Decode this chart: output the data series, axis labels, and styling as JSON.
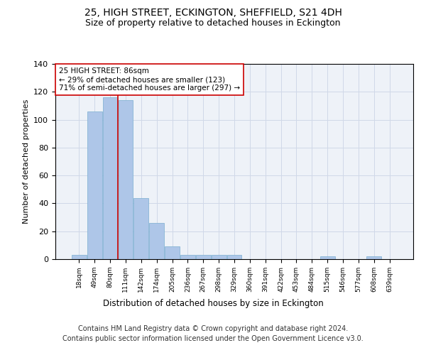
{
  "title": "25, HIGH STREET, ECKINGTON, SHEFFIELD, S21 4DH",
  "subtitle": "Size of property relative to detached houses in Eckington",
  "xlabel": "Distribution of detached houses by size in Eckington",
  "ylabel": "Number of detached properties",
  "bar_labels": [
    "18sqm",
    "49sqm",
    "80sqm",
    "111sqm",
    "142sqm",
    "174sqm",
    "205sqm",
    "236sqm",
    "267sqm",
    "298sqm",
    "329sqm",
    "360sqm",
    "391sqm",
    "422sqm",
    "453sqm",
    "484sqm",
    "515sqm",
    "546sqm",
    "577sqm",
    "608sqm",
    "639sqm"
  ],
  "bar_values": [
    3,
    106,
    116,
    114,
    44,
    26,
    9,
    3,
    3,
    3,
    3,
    0,
    0,
    0,
    0,
    0,
    2,
    0,
    0,
    2,
    0
  ],
  "bar_color": "#aec6e8",
  "bar_edge_color": "#7aaed0",
  "vline_x": 2.5,
  "vline_color": "#cc0000",
  "annotation_text": "25 HIGH STREET: 86sqm\n← 29% of detached houses are smaller (123)\n71% of semi-detached houses are larger (297) →",
  "annotation_box_color": "#ffffff",
  "annotation_box_edge": "#cc0000",
  "ylim": [
    0,
    140
  ],
  "yticks": [
    0,
    20,
    40,
    60,
    80,
    100,
    120,
    140
  ],
  "grid_color": "#d0d8e8",
  "background_color": "#eef2f8",
  "footer_line1": "Contains HM Land Registry data © Crown copyright and database right 2024.",
  "footer_line2": "Contains public sector information licensed under the Open Government Licence v3.0.",
  "title_fontsize": 10,
  "subtitle_fontsize": 9,
  "annotation_fontsize": 7.5,
  "footer_fontsize": 7
}
